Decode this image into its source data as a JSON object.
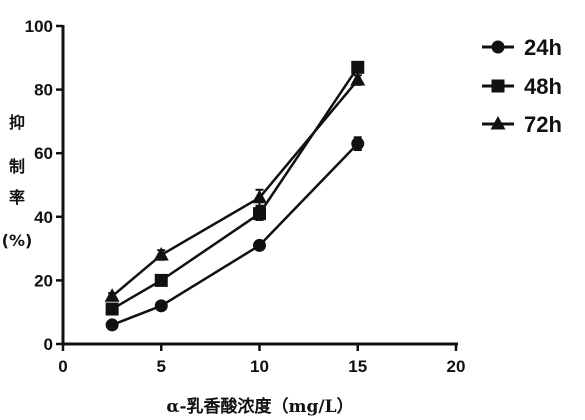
{
  "chart_data": {
    "type": "line",
    "xlabel": "α-乳香酸浓度（mg/L）",
    "ylabel_chars": [
      "抑",
      "制",
      "率",
      "(%)"
    ],
    "xlim": [
      0,
      20
    ],
    "ylim": [
      0,
      100
    ],
    "x_ticks": [
      0,
      5,
      10,
      15,
      20
    ],
    "y_ticks": [
      0,
      20,
      40,
      60,
      80,
      100
    ],
    "x": [
      2.5,
      5,
      10,
      15
    ],
    "series": [
      {
        "name": "24h",
        "marker": "circle",
        "values": [
          6,
          12,
          31,
          63
        ],
        "errors": [
          0.8,
          1.0,
          1.2,
          2.0
        ]
      },
      {
        "name": "48h",
        "marker": "square",
        "values": [
          11,
          20,
          41,
          87
        ],
        "errors": [
          1.2,
          1.5,
          2.0,
          1.5
        ]
      },
      {
        "name": "72h",
        "marker": "triangle",
        "values": [
          15,
          28,
          46,
          83
        ],
        "errors": [
          1.0,
          1.5,
          2.5,
          1.5
        ]
      }
    ],
    "legend_position": "right",
    "grid": false,
    "colors": {
      "line": "#111111",
      "background": "#ffffff"
    }
  }
}
